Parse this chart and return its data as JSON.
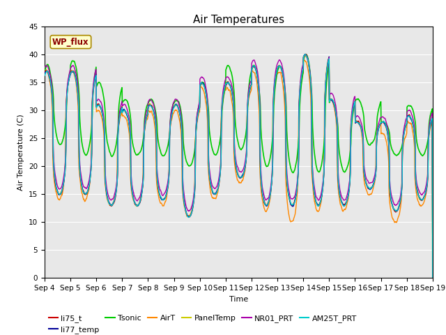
{
  "title": "Air Temperatures",
  "ylabel": "Air Temperature (C)",
  "xlabel": "Time",
  "ylim": [
    0,
    45
  ],
  "yticks": [
    0,
    5,
    10,
    15,
    20,
    25,
    30,
    35,
    40,
    45
  ],
  "wp_flux_label": "WP_flux",
  "series": [
    {
      "name": "li75_t",
      "color": "#cc0000",
      "lw": 1.0,
      "zorder": 5
    },
    {
      "name": "li77_temp",
      "color": "#000099",
      "lw": 1.0,
      "zorder": 6
    },
    {
      "name": "Tsonic",
      "color": "#00cc00",
      "lw": 1.2,
      "zorder": 4
    },
    {
      "name": "AirT",
      "color": "#ff8800",
      "lw": 1.0,
      "zorder": 3
    },
    {
      "name": "PanelTemp",
      "color": "#cccc00",
      "lw": 1.0,
      "zorder": 2
    },
    {
      "name": "NR01_PRT",
      "color": "#aa00aa",
      "lw": 1.0,
      "zorder": 7
    },
    {
      "name": "AM25T_PRT",
      "color": "#00cccc",
      "lw": 1.0,
      "zorder": 8
    }
  ],
  "background_color": "#ffffff",
  "plot_bg_color": "#e8e8e8",
  "title_fontsize": 11,
  "axis_label_fontsize": 8,
  "tick_fontsize": 7.5,
  "legend_fontsize": 8
}
